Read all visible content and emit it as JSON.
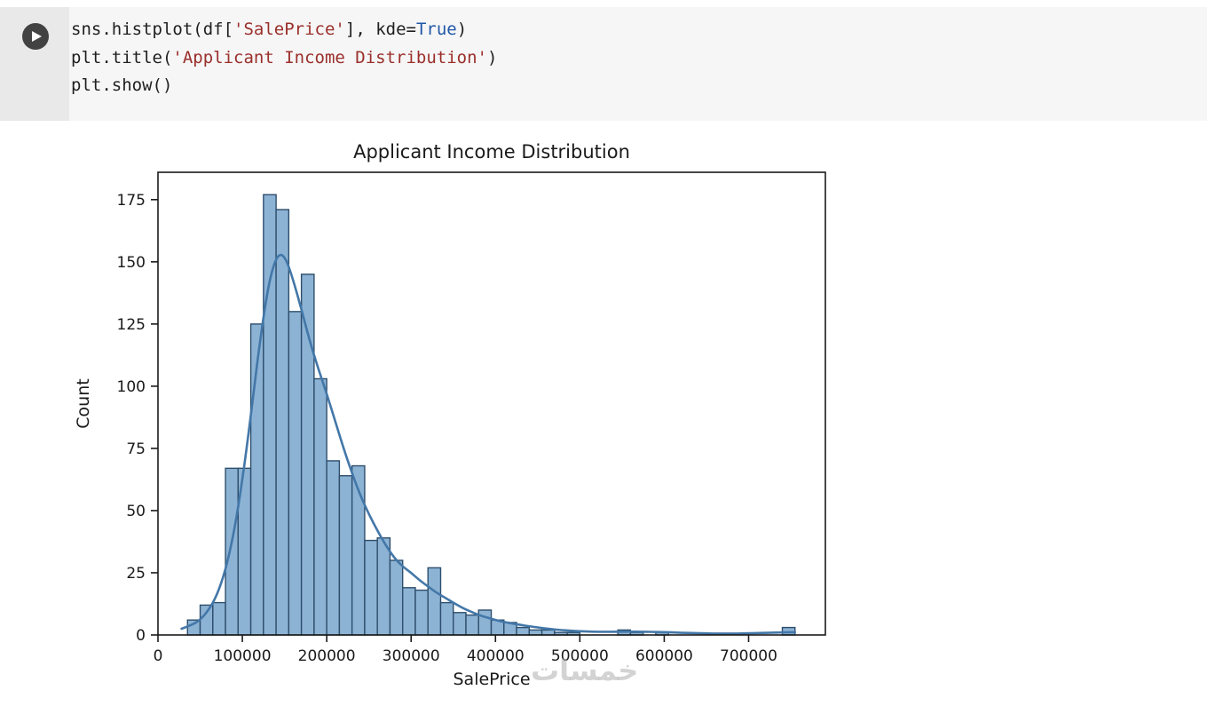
{
  "cell": {
    "run_label": "Run cell",
    "syntax_colors": {
      "default": "#1f1f1f",
      "string": "#9a2f2b",
      "keyword": "#2057a7"
    },
    "code_lines": [
      [
        {
          "t": "sns.histplot(df[",
          "c": "default"
        },
        {
          "t": "'SalePrice'",
          "c": "string"
        },
        {
          "t": "], kde=",
          "c": "default"
        },
        {
          "t": "True",
          "c": "keyword"
        },
        {
          "t": ")",
          "c": "default"
        }
      ],
      [
        {
          "t": "plt.title(",
          "c": "default"
        },
        {
          "t": "'Applicant Income Distribution'",
          "c": "string"
        },
        {
          "t": ")",
          "c": "default"
        }
      ],
      [
        {
          "t": "plt.show()",
          "c": "default"
        }
      ]
    ]
  },
  "output": {
    "watermark": "خمسات"
  },
  "chart_data": {
    "type": "bar",
    "subtype": "histogram-with-kde",
    "title": "Applicant Income Distribution",
    "xlabel": "SalePrice",
    "ylabel": "Count",
    "bin_start": 35000,
    "bin_width": 15000,
    "counts": [
      6,
      12,
      13,
      67,
      67,
      125,
      177,
      171,
      130,
      145,
      103,
      70,
      64,
      68,
      38,
      39,
      30,
      19,
      18,
      27,
      13,
      9,
      8,
      10,
      6,
      5,
      3,
      2,
      2,
      1,
      1,
      0,
      0,
      0,
      2,
      1,
      0,
      1,
      0,
      0,
      0,
      0,
      0,
      0,
      0,
      0,
      0,
      3
    ],
    "xlim": [
      0,
      791000
    ],
    "ylim": [
      0,
      186
    ],
    "grid": false,
    "legend": "none",
    "xticks": [
      {
        "v": 0,
        "label": "0"
      },
      {
        "v": 100000,
        "label": "100000"
      },
      {
        "v": 200000,
        "label": "200000"
      },
      {
        "v": 300000,
        "label": "300000"
      },
      {
        "v": 400000,
        "label": "400000"
      },
      {
        "v": 500000,
        "label": "500000"
      },
      {
        "v": 600000,
        "label": "600000"
      },
      {
        "v": 700000,
        "label": "700000"
      }
    ],
    "yticks": [
      {
        "v": 0,
        "label": "0"
      },
      {
        "v": 25,
        "label": "25"
      },
      {
        "v": 50,
        "label": "50"
      },
      {
        "v": 75,
        "label": "75"
      },
      {
        "v": 100,
        "label": "100"
      },
      {
        "v": 125,
        "label": "125"
      },
      {
        "v": 150,
        "label": "150"
      },
      {
        "v": 175,
        "label": "175"
      }
    ],
    "colors": {
      "bar_fill": "#8db3d4",
      "bar_edge": "#2e4e6c",
      "kde_line": "#4377a8",
      "axis": "#1a1a1a"
    },
    "kde_points": [
      [
        28000,
        2.5
      ],
      [
        40000,
        4
      ],
      [
        50000,
        6
      ],
      [
        60000,
        10
      ],
      [
        70000,
        16
      ],
      [
        80000,
        26
      ],
      [
        90000,
        41
      ],
      [
        100000,
        62
      ],
      [
        110000,
        88
      ],
      [
        120000,
        116
      ],
      [
        130000,
        139
      ],
      [
        138000,
        150
      ],
      [
        145000,
        153.5
      ],
      [
        152000,
        151
      ],
      [
        160000,
        143
      ],
      [
        170000,
        131
      ],
      [
        180000,
        118
      ],
      [
        190000,
        107
      ],
      [
        200000,
        97
      ],
      [
        210000,
        86
      ],
      [
        220000,
        75
      ],
      [
        230000,
        65
      ],
      [
        240000,
        56
      ],
      [
        250000,
        48.5
      ],
      [
        260000,
        42
      ],
      [
        270000,
        36
      ],
      [
        280000,
        31
      ],
      [
        290000,
        27.5
      ],
      [
        300000,
        25
      ],
      [
        310000,
        22
      ],
      [
        320000,
        19.5
      ],
      [
        330000,
        17
      ],
      [
        340000,
        15
      ],
      [
        350000,
        13
      ],
      [
        360000,
        11
      ],
      [
        370000,
        9.5
      ],
      [
        380000,
        8
      ],
      [
        390000,
        7
      ],
      [
        400000,
        6
      ],
      [
        410000,
        5.2
      ],
      [
        420000,
        4.6
      ],
      [
        430000,
        4
      ],
      [
        440000,
        3.5
      ],
      [
        450000,
        3
      ],
      [
        460000,
        2.6
      ],
      [
        470000,
        2.2
      ],
      [
        480000,
        1.9
      ],
      [
        490000,
        1.7
      ],
      [
        500000,
        1.5
      ],
      [
        515000,
        1.3
      ],
      [
        530000,
        1.25
      ],
      [
        545000,
        1.3
      ],
      [
        560000,
        1.35
      ],
      [
        575000,
        1.3
      ],
      [
        590000,
        1.2
      ],
      [
        605000,
        1.1
      ],
      [
        620000,
        0.9
      ],
      [
        635000,
        0.75
      ],
      [
        650000,
        0.6
      ],
      [
        665000,
        0.55
      ],
      [
        680000,
        0.55
      ],
      [
        695000,
        0.6
      ],
      [
        710000,
        0.75
      ],
      [
        725000,
        0.9
      ],
      [
        740000,
        1.05
      ],
      [
        755000,
        1.1
      ]
    ]
  }
}
